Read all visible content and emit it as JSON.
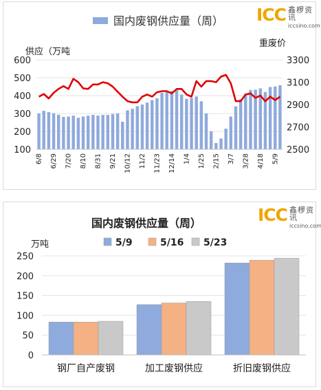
{
  "logo": {
    "brand": "ICC",
    "cn": "鑫椤资讯",
    "url": "iccsino.com"
  },
  "chart_data": [
    {
      "type": "bar",
      "title": "国内废钢供应量（周）",
      "ylabel": "供应（万吨",
      "y2label": "重废价",
      "ylim": [
        100,
        600
      ],
      "y2lim": [
        2500,
        3300
      ],
      "yticks": [
        100,
        200,
        300,
        400,
        500,
        600
      ],
      "y2ticks": [
        2500,
        2700,
        2900,
        3100,
        3300
      ],
      "xtick_labels": [
        "6/8",
        "6/29",
        "7/20",
        "8/10",
        "8/31",
        "9/21",
        "10/12",
        "11/2",
        "11/23",
        "12/14",
        "1/4",
        "1/25",
        "2/15",
        "3/7",
        "3/28",
        "4/18",
        "5/9"
      ],
      "series": [
        {
          "name": "国内废钢供应量（周）",
          "type": "bar",
          "color": "#8faadc",
          "values": [
            300,
            315,
            308,
            302,
            293,
            281,
            283,
            288,
            276,
            283,
            288,
            292,
            288,
            292,
            292,
            297,
            300,
            254,
            318,
            326,
            341,
            350,
            361,
            375,
            385,
            416,
            427,
            426,
            431,
            406,
            382,
            387,
            395,
            368,
            300,
            200,
            135,
            160,
            215,
            283,
            340,
            380,
            410,
            431,
            433,
            440,
            420,
            448,
            451,
            458
          ]
        },
        {
          "type": "line",
          "axis": "right",
          "color": "#e00000",
          "values": [
            2970,
            2995,
            2955,
            3005,
            3040,
            3065,
            3040,
            3130,
            3100,
            3045,
            3040,
            3080,
            3080,
            3100,
            3090,
            3060,
            3015,
            2970,
            2930,
            2920,
            2920,
            2970,
            2990,
            2970,
            3010,
            3020,
            3020,
            3000,
            3040,
            3040,
            2990,
            2970,
            3110,
            3060,
            3110,
            3110,
            3100,
            3150,
            3165,
            3090,
            2930,
            2930,
            2990,
            3000,
            2960,
            2980,
            2930,
            2970,
            2940,
            2970
          ]
        }
      ]
    },
    {
      "type": "bar",
      "title": "国内废钢供应量（周）",
      "ylabel": "万吨",
      "ylim": [
        0,
        250
      ],
      "yticks": [
        0,
        50,
        100,
        150,
        200,
        250
      ],
      "categories": [
        "钢厂自产废钢",
        "加工废钢供应",
        "折旧废钢供应"
      ],
      "series": [
        {
          "name": "5/9",
          "color": "#8faadc",
          "values": [
            83,
            127,
            232
          ]
        },
        {
          "name": "5/16",
          "color": "#f4b183",
          "values": [
            83,
            131,
            239
          ]
        },
        {
          "name": "5/23",
          "color": "#c9c9c9",
          "values": [
            85,
            135,
            244
          ]
        }
      ]
    }
  ]
}
